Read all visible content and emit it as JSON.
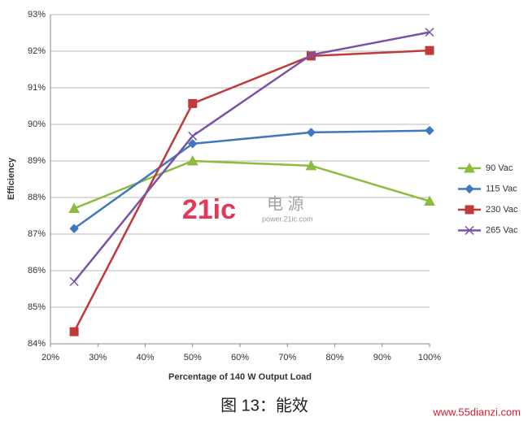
{
  "chart_data": {
    "type": "line",
    "xlabel": "Percentage of 140 W Output Load",
    "ylabel": "Efficiency",
    "x": [
      25,
      50,
      75,
      100
    ],
    "series": [
      {
        "name": "90 Vac",
        "color": "#8dbb3e",
        "marker": "triangle",
        "values": [
          87.7,
          89.0,
          88.87,
          87.9
        ]
      },
      {
        "name": "115 Vac",
        "color": "#3f78c0",
        "marker": "diamond",
        "values": [
          87.15,
          89.47,
          89.78,
          89.83
        ]
      },
      {
        "name": "230 Vac",
        "color": "#c0393b",
        "marker": "square",
        "values": [
          84.33,
          90.57,
          91.87,
          92.02
        ]
      },
      {
        "name": "265 Vac",
        "color": "#7a52a6",
        "marker": "cross",
        "values": [
          85.7,
          89.68,
          91.9,
          92.52
        ]
      }
    ],
    "xlim": [
      20,
      100
    ],
    "xticks": [
      {
        "value": 20,
        "label": "20%"
      },
      {
        "value": 30,
        "label": "30%"
      },
      {
        "value": 40,
        "label": "40%"
      },
      {
        "value": 50,
        "label": "50%"
      },
      {
        "value": 60,
        "label": "60%"
      },
      {
        "value": 70,
        "label": "70%"
      },
      {
        "value": 80,
        "label": "80%"
      },
      {
        "value": 90,
        "label": "90%"
      },
      {
        "value": 100,
        "label": "100%"
      }
    ],
    "ylim": [
      84,
      93
    ],
    "yticks": [
      {
        "value": 84,
        "label": "84%"
      },
      {
        "value": 85,
        "label": "85%"
      },
      {
        "value": 86,
        "label": "86%"
      },
      {
        "value": 87,
        "label": "87%"
      },
      {
        "value": 88,
        "label": "88%"
      },
      {
        "value": 89,
        "label": "89%"
      },
      {
        "value": 90,
        "label": "90%"
      },
      {
        "value": 91,
        "label": "91%"
      },
      {
        "value": 92,
        "label": "92%"
      },
      {
        "value": 93,
        "label": "93%"
      }
    ],
    "grid": true,
    "legend": "right",
    "watermark": {
      "logo": "21ic",
      "text": "电 源",
      "url": "power.21ic.com"
    },
    "caption": "图 13：能效",
    "source": "www.55dianzi.com"
  }
}
